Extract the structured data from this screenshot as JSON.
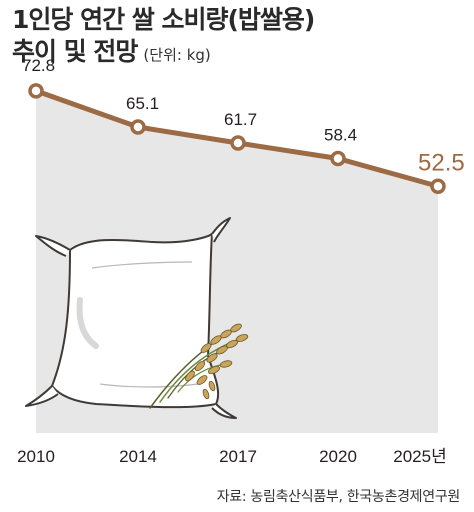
{
  "header": {
    "title": "1인당 연간 쌀 소비량(밥쌀용)",
    "subtitle": "추이 및 전망",
    "unit": "(단위: kg)"
  },
  "source": "자료: 농림축산식품부, 한국농촌경제연구원",
  "colors": {
    "line": "#9c6b45",
    "area": "#e7e7e7",
    "marker_fill": "#ffffff",
    "highlight": "#9c6b45"
  },
  "illustration": {
    "icon": "rice-sack-with-rice-stalks"
  },
  "chart_data": {
    "type": "line",
    "categories": [
      "2010",
      "2014",
      "2017",
      "2020",
      "2025년"
    ],
    "values": [
      72.8,
      65.1,
      61.7,
      58.4,
      52.5
    ],
    "value_labels": [
      "72.8",
      "65.1",
      "61.7",
      "58.4",
      "52.5"
    ],
    "highlight_index": 4,
    "ylim": [
      0,
      80
    ],
    "grid": false,
    "legend": "none",
    "title": "1인당 연간 쌀 소비량(밥쌀용) 추이 및 전망"
  }
}
